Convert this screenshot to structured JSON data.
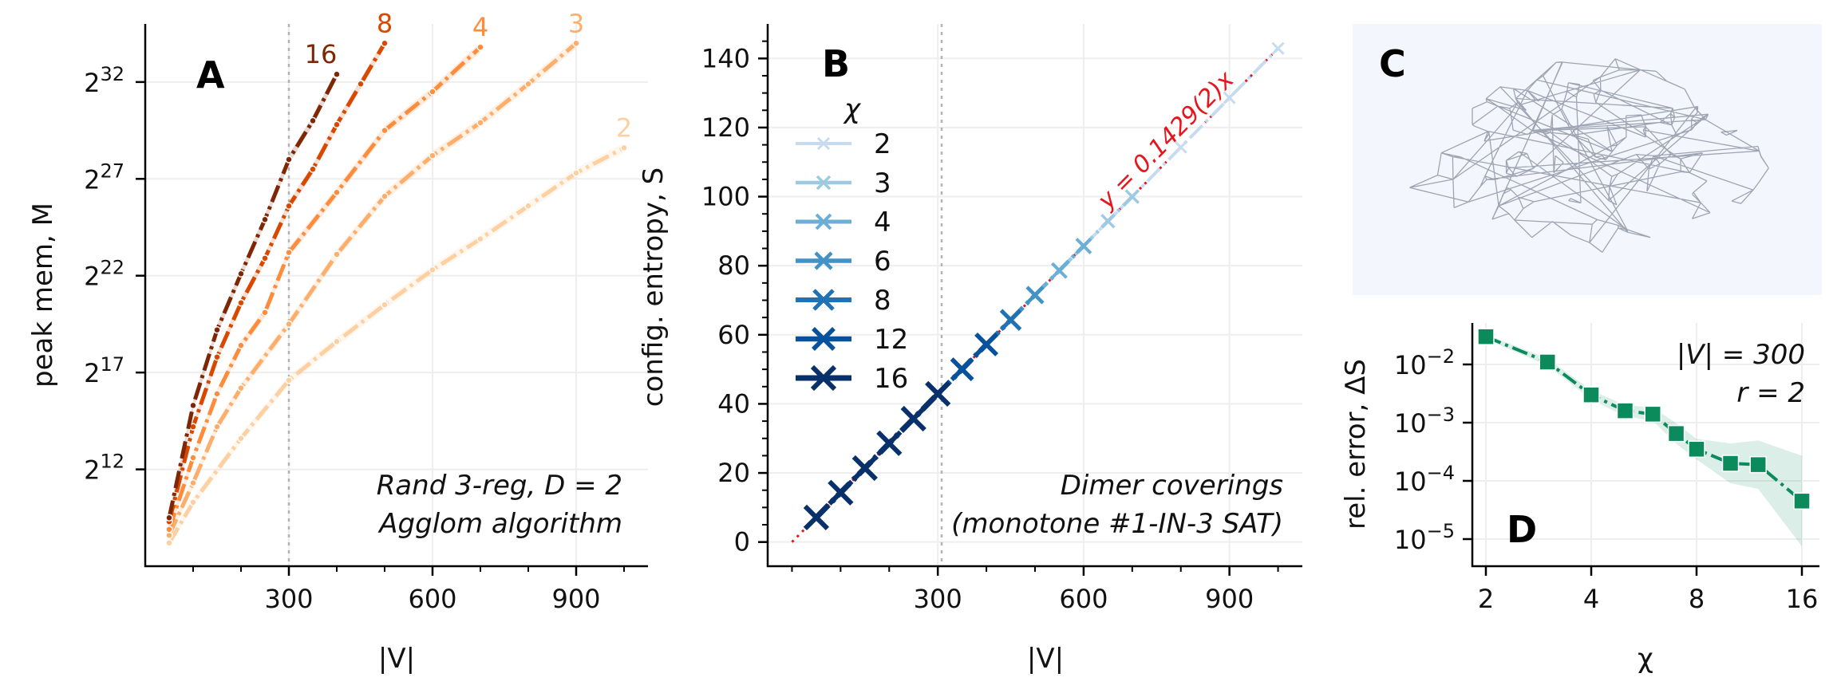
{
  "chart_data": [
    {
      "panel": "A",
      "type": "line",
      "xlabel": "|V|",
      "ylabel": "peak mem, M",
      "x_ticks": [
        "300",
        "600",
        "900"
      ],
      "y_ticks": [
        "2^12",
        "2^17",
        "2^22",
        "2^27",
        "2^32"
      ],
      "y_scale": "log2",
      "xlim": [
        0,
        1050
      ],
      "ylim_log2": [
        7,
        35
      ],
      "vline_x": 300,
      "annotation": [
        "Rand 3-reg, D = 2",
        "Agglom algorithm"
      ],
      "series": [
        {
          "name": "2",
          "color": "#fdd0a2",
          "x": [
            50,
            100,
            200,
            300,
            400,
            500,
            600,
            700,
            800,
            900,
            1000
          ],
          "y_log2": [
            8.2,
            10.3,
            13.6,
            16.6,
            18.6,
            20.5,
            22.3,
            23.9,
            25.6,
            27.3,
            28.6
          ]
        },
        {
          "name": "3",
          "color": "#fdae6b",
          "x": [
            50,
            100,
            150,
            200,
            300,
            400,
            500,
            600,
            700,
            800,
            900
          ],
          "y_log2": [
            8.6,
            11.3,
            14.2,
            16.2,
            19.5,
            23.1,
            26.1,
            28.2,
            29.9,
            31.9,
            34.0
          ]
        },
        {
          "name": "4",
          "color": "#fd8d3c",
          "x": [
            50,
            100,
            150,
            200,
            250,
            300,
            400,
            500,
            600,
            700
          ],
          "y_log2": [
            8.9,
            12.6,
            15.9,
            18.4,
            20.1,
            23.2,
            26.3,
            29.5,
            31.5,
            33.8
          ]
        },
        {
          "name": "8",
          "color": "#d94801",
          "x": [
            50,
            100,
            150,
            200,
            250,
            300,
            350,
            400,
            450,
            500
          ],
          "y_log2": [
            9.3,
            14.2,
            17.8,
            20.6,
            22.9,
            25.6,
            27.5,
            29.8,
            31.9,
            34.0
          ]
        },
        {
          "name": "16",
          "color": "#7f2704",
          "x": [
            50,
            100,
            150,
            200,
            250,
            300,
            350,
            400
          ],
          "y_log2": [
            9.5,
            15.3,
            19.2,
            22.1,
            24.9,
            28.0,
            30.0,
            32.4
          ]
        }
      ]
    },
    {
      "panel": "B",
      "type": "line",
      "xlabel": "|V|",
      "ylabel": "config. entropy, S",
      "x_ticks": [
        "300",
        "600",
        "900"
      ],
      "y_ticks": [
        "0",
        "20",
        "40",
        "60",
        "80",
        "100",
        "120",
        "140"
      ],
      "xlim": [
        -50,
        1050
      ],
      "ylim": [
        -7,
        150
      ],
      "vline_x": 300,
      "legend_title": "χ",
      "fit_label": "y = 0.1429(2)x",
      "fit_slope": 0.1429,
      "annotation": [
        "Dimer coverings",
        "(monotone #1-IN-3 SAT)"
      ],
      "series": [
        {
          "name": "2",
          "color": "#c6dbef",
          "x": [
            600,
            700,
            800,
            900,
            1000
          ],
          "y": [
            85.7,
            100.0,
            114.3,
            128.6,
            142.9
          ]
        },
        {
          "name": "3",
          "color": "#9ecae1",
          "x": [
            550,
            600,
            650,
            700
          ],
          "y": [
            78.6,
            85.7,
            92.9,
            100.0
          ]
        },
        {
          "name": "4",
          "color": "#6baed6",
          "x": [
            500,
            550,
            600
          ],
          "y": [
            71.5,
            78.6,
            85.7
          ]
        },
        {
          "name": "6",
          "color": "#4292c6",
          "x": [
            450,
            500
          ],
          "y": [
            64.3,
            71.5
          ]
        },
        {
          "name": "8",
          "color": "#2171b5",
          "x": [
            400,
            450
          ],
          "y": [
            57.2,
            64.3
          ]
        },
        {
          "name": "12",
          "color": "#08519c",
          "x": [
            300,
            350,
            400
          ],
          "y": [
            42.9,
            50.0,
            57.2
          ]
        },
        {
          "name": "16",
          "color": "#08306b",
          "x": [
            50,
            100,
            150,
            200,
            250,
            300
          ],
          "y": [
            7.1,
            14.3,
            21.4,
            28.6,
            35.7,
            42.9
          ]
        }
      ]
    },
    {
      "panel": "D",
      "type": "line",
      "xlabel": "χ",
      "ylabel": "rel. error, ΔS",
      "x_ticks": [
        "2",
        "4",
        "8",
        "16"
      ],
      "y_ticks": [
        "10^-2",
        "10^-3",
        "10^-4",
        "10^-5"
      ],
      "x_scale": "log2",
      "y_scale": "log10",
      "annotation": [
        "|V| = 300",
        "r = 2"
      ],
      "series": [
        {
          "name": "",
          "color": "#0b8a5c",
          "x": [
            2,
            3,
            4,
            5,
            6,
            7,
            8,
            10,
            12,
            16
          ],
          "y": [
            0.03,
            0.011,
            0.003,
            0.0016,
            0.0014,
            0.00065,
            0.00035,
            0.0002,
            0.00019,
            4.5e-05
          ]
        }
      ]
    }
  ],
  "panels": {
    "a": {
      "letter": "A",
      "series_labels": [
        "16",
        "8",
        "4",
        "3",
        "2"
      ]
    },
    "b": {
      "letter": "B"
    },
    "c": {
      "letter": "C"
    },
    "d": {
      "letter": "D"
    }
  },
  "colors": {
    "fit_line": "#e8141c",
    "graph_bg": "#f3f6fd",
    "graph_edges": "#8e95a3",
    "vline": "#b3b3b3"
  }
}
